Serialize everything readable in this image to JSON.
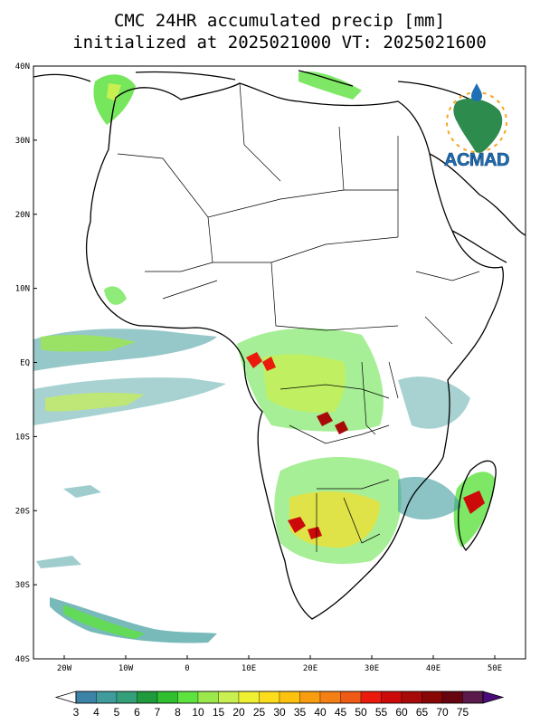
{
  "header": {
    "title_line1": "CMC 24HR accumulated precip [mm]",
    "title_line2": "initialized at 2025021000 VT: 2025021600"
  },
  "map": {
    "lat_range": [
      -40,
      40
    ],
    "lon_range": [
      -25,
      55
    ],
    "lat_labels": [
      "40N",
      "30N",
      "20N",
      "10N",
      "EQ",
      "10S",
      "20S",
      "30S",
      "40S"
    ],
    "lon_labels": [
      "20W",
      "10W",
      "0",
      "10E",
      "20E",
      "30E",
      "40E",
      "50E"
    ]
  },
  "logo": {
    "text": "ACMAD",
    "icon": "africa-globe-logo"
  },
  "colorbar": {
    "labels": [
      "3",
      "4",
      "5",
      "6",
      "7",
      "8",
      "10",
      "15",
      "20",
      "25",
      "30",
      "35",
      "40",
      "45",
      "50",
      "55",
      "60",
      "65",
      "70",
      "75"
    ],
    "colors": [
      "#ffffff",
      "#3c83a8",
      "#3f9b9c",
      "#34a07a",
      "#1f9a3c",
      "#2fbf2f",
      "#5ee240",
      "#9ae84c",
      "#c8f050",
      "#f0f032",
      "#fddc1e",
      "#fcc20e",
      "#f99c10",
      "#f47f14",
      "#ef5a14",
      "#ea1b0c",
      "#cc0a0a",
      "#a80a0a",
      "#880606",
      "#660410",
      "#5a1a4a",
      "#4a0c7a"
    ]
  }
}
